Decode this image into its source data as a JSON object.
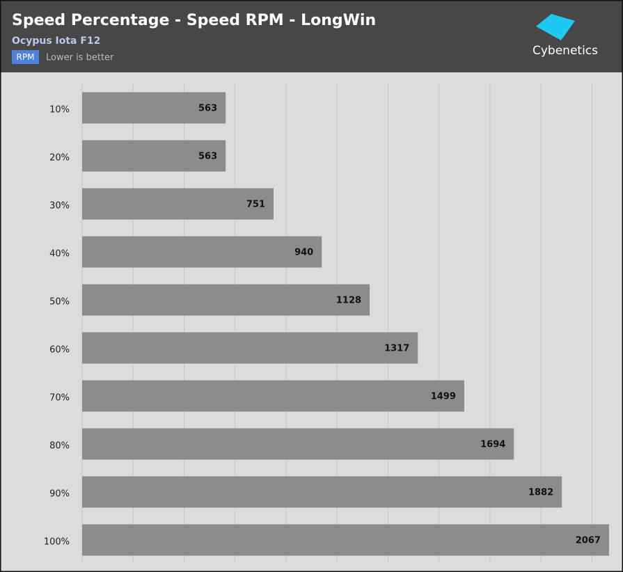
{
  "chart_data": {
    "type": "bar",
    "orientation": "horizontal",
    "title": "Speed Percentage - Speed RPM - LongWin",
    "subtitle": "Ocypus Iota F12",
    "unit_badge": "RPM",
    "note": "Lower is better",
    "categories": [
      "10%",
      "20%",
      "30%",
      "40%",
      "50%",
      "60%",
      "70%",
      "80%",
      "90%",
      "100%"
    ],
    "values": [
      563,
      563,
      751,
      940,
      1128,
      1317,
      1499,
      1694,
      1882,
      2067
    ],
    "color": "#8c8c8c",
    "xlim": [
      0,
      2100
    ],
    "xticks": [
      0,
      200,
      400,
      600,
      800,
      1000,
      1200,
      1400,
      1600,
      1800,
      2000
    ],
    "grid": true
  },
  "logo": "Cybenetics"
}
